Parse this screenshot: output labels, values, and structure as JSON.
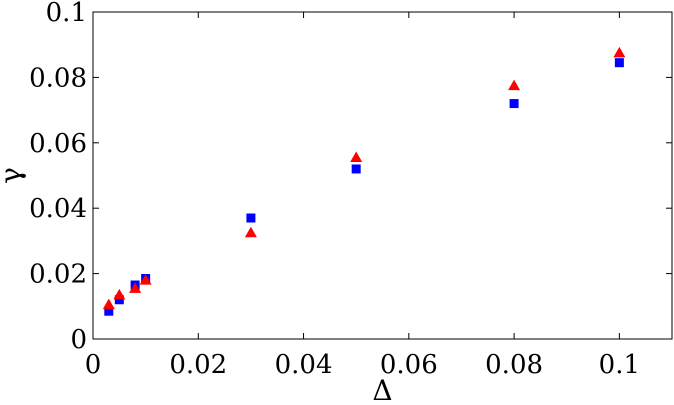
{
  "chart_data": {
    "type": "scatter",
    "title": "",
    "xlabel": "Δ",
    "ylabel": "γ",
    "xlim": [
      0,
      0.11
    ],
    "ylim": [
      0,
      0.1
    ],
    "xticks": [
      0,
      0.02,
      0.04,
      0.06,
      0.08,
      0.1
    ],
    "yticks": [
      0,
      0.02,
      0.04,
      0.06,
      0.08,
      0.1
    ],
    "xtick_labels": [
      "0",
      "0.02",
      "0.04",
      "0.06",
      "0.08",
      "0.1"
    ],
    "ytick_labels": [
      "0",
      "0.02",
      "0.04",
      "0.06",
      "0.08",
      "0.1"
    ],
    "grid": false,
    "legend": "none",
    "series": [
      {
        "marker": "square",
        "color": "#0000ff",
        "x": [
          0.003,
          0.005,
          0.008,
          0.01,
          0.03,
          0.05,
          0.08,
          0.1
        ],
        "y": [
          0.0085,
          0.012,
          0.0165,
          0.0185,
          0.037,
          0.052,
          0.072,
          0.0845
        ]
      },
      {
        "marker": "triangle",
        "color": "#ff0000",
        "x": [
          0.003,
          0.005,
          0.008,
          0.01,
          0.03,
          0.05,
          0.08,
          0.1
        ],
        "y": [
          0.0105,
          0.0135,
          0.0155,
          0.018,
          0.0325,
          0.0555,
          0.0775,
          0.0875
        ]
      }
    ]
  }
}
